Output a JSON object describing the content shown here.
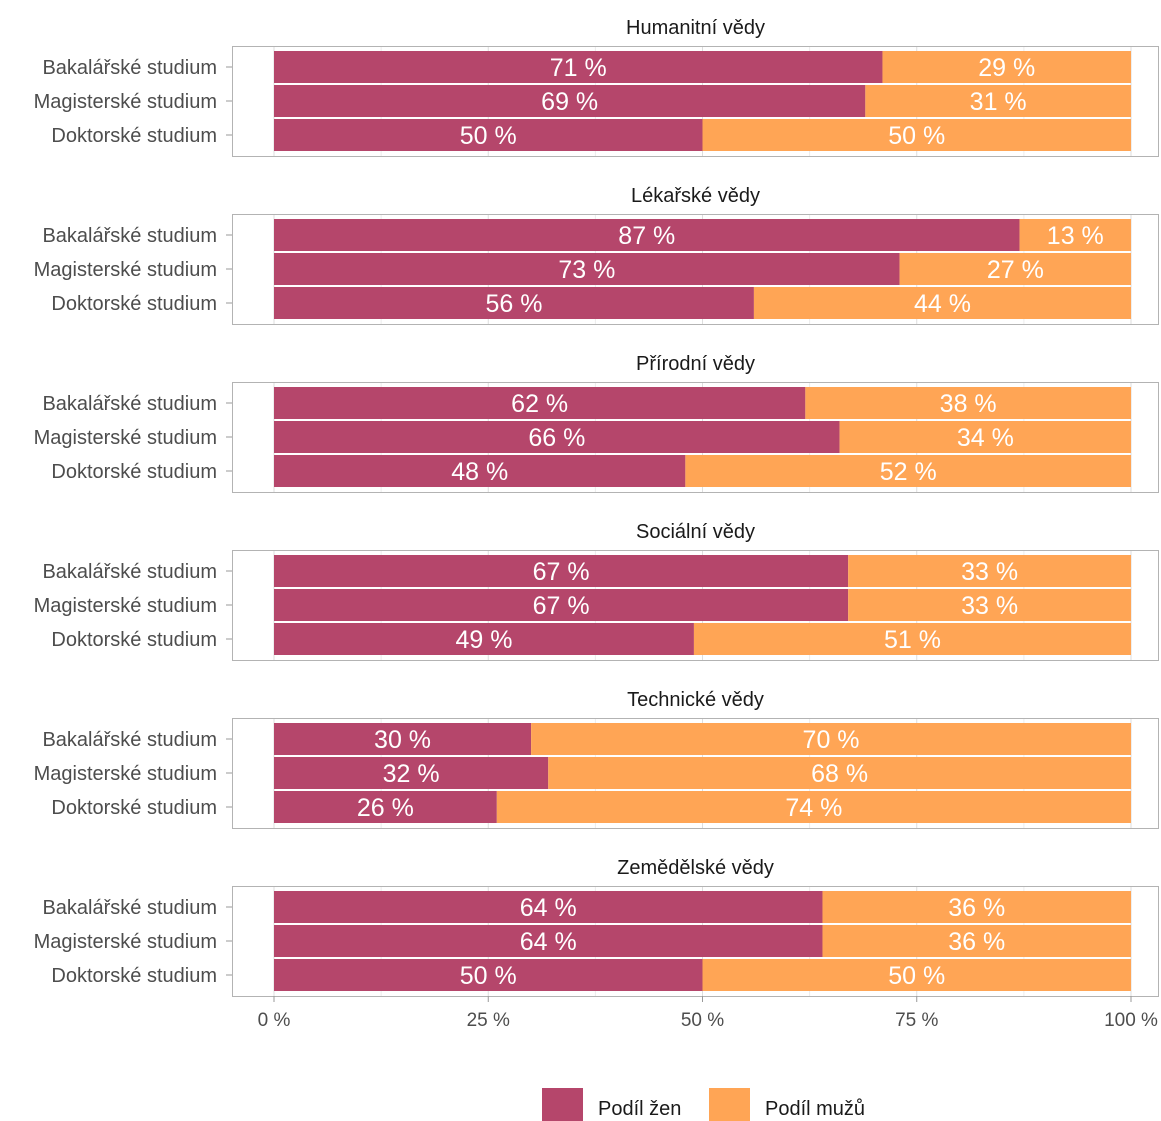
{
  "chart_data": {
    "type": "bar",
    "orientation": "horizontal",
    "stacked": true,
    "categories": [
      "Bakalářské studium",
      "Magisterské studium",
      "Doktorské studium"
    ],
    "x_ticks": [
      "0 %",
      "25 %",
      "50 %",
      "75 %",
      "100 %"
    ],
    "xlim": [
      0,
      100
    ],
    "grid": true,
    "legend_position": "bottom",
    "series_meta": [
      {
        "name": "Podíl žen",
        "color": "#b5466b"
      },
      {
        "name": "Podíl mužů",
        "color": "#ffa555"
      }
    ],
    "facets": [
      {
        "title": "Humanitní vědy",
        "women": [
          71,
          69,
          50
        ],
        "men": [
          29,
          31,
          50
        ],
        "women_labels": [
          "71 %",
          "69 %",
          "50 %"
        ],
        "men_labels": [
          "29 %",
          "31 %",
          "50 %"
        ]
      },
      {
        "title": "Lékařské vědy",
        "women": [
          87,
          73,
          56
        ],
        "men": [
          13,
          27,
          44
        ],
        "women_labels": [
          "87 %",
          "73 %",
          "56 %"
        ],
        "men_labels": [
          "13 %",
          "27 %",
          "44 %"
        ]
      },
      {
        "title": "Přírodní vědy",
        "women": [
          62,
          66,
          48
        ],
        "men": [
          38,
          34,
          52
        ],
        "women_labels": [
          "62 %",
          "66 %",
          "48 %"
        ],
        "men_labels": [
          "38 %",
          "34 %",
          "52 %"
        ]
      },
      {
        "title": "Sociální vědy",
        "women": [
          67,
          67,
          49
        ],
        "men": [
          33,
          33,
          51
        ],
        "women_labels": [
          "67 %",
          "67 %",
          "49 %"
        ],
        "men_labels": [
          "33 %",
          "33 %",
          "51 %"
        ]
      },
      {
        "title": "Technické vědy",
        "women": [
          30,
          32,
          26
        ],
        "men": [
          70,
          68,
          74
        ],
        "women_labels": [
          "30 %",
          "32 %",
          "26 %"
        ],
        "men_labels": [
          "70 %",
          "68 %",
          "74 %"
        ]
      },
      {
        "title": "Zemědělské vědy",
        "women": [
          64,
          64,
          50
        ],
        "men": [
          36,
          36,
          50
        ],
        "women_labels": [
          "64 %",
          "64 %",
          "50 %"
        ],
        "men_labels": [
          "36 %",
          "36 %",
          "50 %"
        ]
      }
    ]
  }
}
